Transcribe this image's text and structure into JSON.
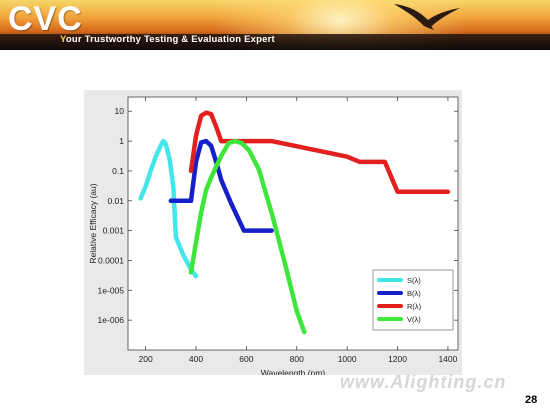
{
  "header": {
    "brand": "CVC",
    "tagline_first_letter": "Y",
    "tagline_rest": "our Trustworthy Testing & Evaluation Expert"
  },
  "page_number": "28",
  "watermark": "www.Alighting.cn",
  "colors": {
    "S": "#45e6ea",
    "B": "#1520c8",
    "R": "#e41f1f",
    "V": "#3ee63a"
  },
  "chart_data": {
    "type": "line",
    "xlabel": "Wavelength (nm)",
    "ylabel": "Relative Efficacy (au)",
    "x_range": [
      130,
      1440
    ],
    "y_scale": "log",
    "y_range": [
      1e-07,
      30
    ],
    "x_ticks": [
      200,
      400,
      600,
      800,
      1000,
      1200,
      1400
    ],
    "y_ticks": [
      {
        "value": 10,
        "label": "10"
      },
      {
        "value": 1,
        "label": "1"
      },
      {
        "value": 0.1,
        "label": "0.1"
      },
      {
        "value": 0.01,
        "label": "0.01"
      },
      {
        "value": 0.001,
        "label": "0.001"
      },
      {
        "value": 0.0001,
        "label": "0.0001"
      },
      {
        "value": 1e-05,
        "label": "1e-005"
      },
      {
        "value": 1e-06,
        "label": "1e-006"
      }
    ],
    "legend_position": "bottom-right",
    "series": [
      {
        "name": "S(λ)",
        "color_key": "S",
        "x": [
          180,
          200,
          220,
          240,
          260,
          270,
          280,
          295,
          310,
          320,
          350,
          380,
          400
        ],
        "y": [
          0.012,
          0.03,
          0.1,
          0.3,
          0.7,
          1.0,
          0.8,
          0.25,
          0.03,
          0.0006,
          0.00015,
          5e-05,
          3e-05
        ]
      },
      {
        "name": "B(λ)",
        "color_key": "B",
        "x": [
          300,
          380,
          400,
          420,
          440,
          460,
          480,
          500,
          540,
          590,
          620,
          700
        ],
        "y": [
          0.01,
          0.01,
          0.2,
          0.9,
          1.0,
          0.7,
          0.2,
          0.05,
          0.008,
          0.001,
          0.001,
          0.001
        ]
      },
      {
        "name": "R(λ)",
        "color_key": "R",
        "x": [
          380,
          400,
          420,
          440,
          460,
          480,
          500,
          700,
          1000,
          1050,
          1150,
          1200,
          1400
        ],
        "y": [
          0.1,
          1.5,
          7,
          9,
          8,
          3,
          1.0,
          1.0,
          0.3,
          0.2,
          0.2,
          0.02,
          0.02
        ]
      },
      {
        "name": "V(λ)",
        "color_key": "V",
        "x": [
          380,
          400,
          420,
          440,
          460,
          480,
          500,
          530,
          555,
          580,
          610,
          650,
          700,
          750,
          800,
          830
        ],
        "y": [
          4e-05,
          0.0004,
          0.004,
          0.023,
          0.06,
          0.14,
          0.32,
          0.86,
          1.0,
          0.87,
          0.5,
          0.11,
          0.004,
          0.0001,
          2e-06,
          4e-07
        ]
      }
    ]
  }
}
